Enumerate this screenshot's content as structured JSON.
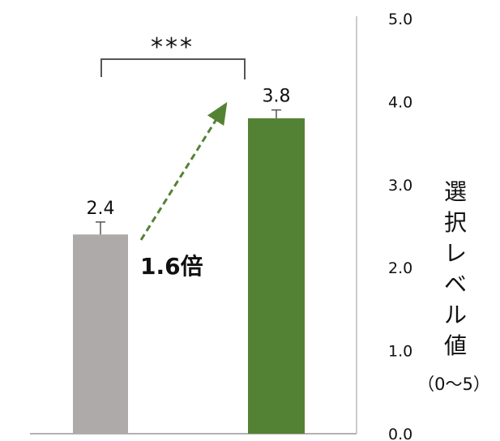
{
  "chart_data": {
    "type": "bar",
    "categories": [
      "",
      ""
    ],
    "values": [
      2.4,
      3.8
    ],
    "error": [
      0.15,
      0.1
    ],
    "colors": [
      "#aeaaaa",
      "#548235"
    ],
    "data_labels": [
      "2.4",
      "3.8"
    ],
    "ylim": [
      0,
      5
    ],
    "yticks": [
      "0.0",
      "1.0",
      "2.0",
      "3.0",
      "4.0",
      "5.0"
    ],
    "ylabel": "選択レベル値",
    "ylabel_unit": "（0〜5）",
    "y_axis_side": "right",
    "grid": false,
    "significance": "***",
    "fold_change_label": "1.6倍",
    "arrow_color": "#548235"
  }
}
